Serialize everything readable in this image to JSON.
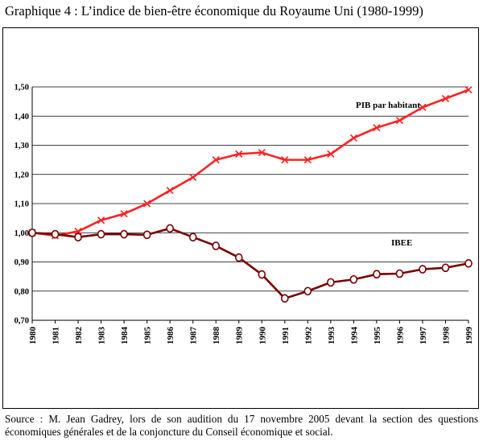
{
  "title": "Graphique 4 : L’indice de bien-être économique du Royaume Uni (1980-1999)",
  "source": "Source : M. Jean Gadrey, lors de son audition du 17 novembre 2005 devant la section des questions économiques générales et de la conjoncture du Conseil économique et social.",
  "chart_data": {
    "type": "line",
    "title": "",
    "xlabel": "",
    "ylabel": "",
    "ylim": [
      0.7,
      1.5
    ],
    "grid": true,
    "y_ticks": [
      "0,70",
      "0,80",
      "0,90",
      "1,00",
      "1,10",
      "1,20",
      "1,30",
      "1,40",
      "1,50"
    ],
    "x": [
      "1980",
      "1981",
      "1982",
      "1983",
      "1984",
      "1985",
      "1986",
      "1987",
      "1988",
      "1989",
      "1990",
      "1991",
      "1992",
      "1993",
      "1994",
      "1995",
      "1996",
      "1997",
      "1998",
      "1999"
    ],
    "series": [
      {
        "name": "PIB par habitant",
        "color": "#ff2222",
        "marker": "x",
        "values": [
          1.0,
          0.99,
          1.005,
          1.043,
          1.065,
          1.1,
          1.145,
          1.19,
          1.25,
          1.27,
          1.275,
          1.25,
          1.25,
          1.27,
          1.325,
          1.36,
          1.385,
          1.43,
          1.46,
          1.49
        ]
      },
      {
        "name": "IBEE",
        "color": "#7a0000",
        "marker": "circle",
        "values": [
          1.0,
          0.995,
          0.985,
          0.995,
          0.995,
          0.993,
          1.015,
          0.985,
          0.955,
          0.915,
          0.857,
          0.775,
          0.8,
          0.83,
          0.84,
          0.858,
          0.86,
          0.875,
          0.88,
          0.895
        ]
      }
    ]
  }
}
